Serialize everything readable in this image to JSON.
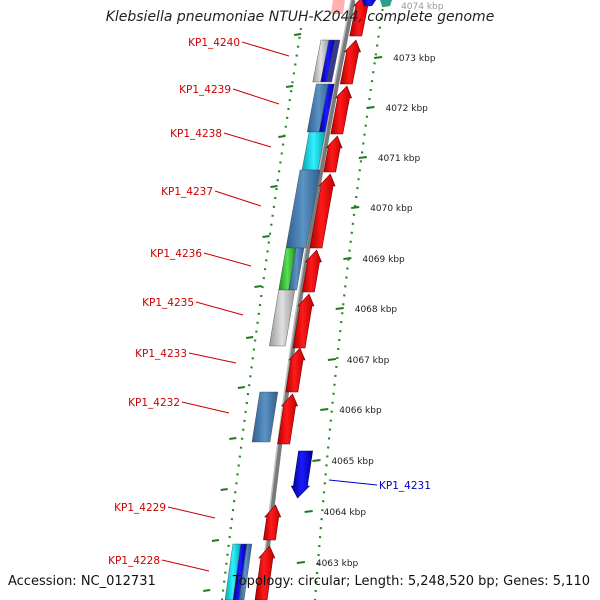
{
  "title": "Klebsiella pneumoniae NTUH-K2044, complete genome",
  "footer": {
    "accession": "Accession: NC_012731",
    "topology": "Topology: circular; Length: 5,248,520 bp; Genes: 5,110"
  },
  "colors": {
    "forward_gene": "#ff0000",
    "reverse_gene_blue": "#0000ee",
    "gene_label": "#cc0000",
    "reverse_label": "#0000cc",
    "backbone": "#808080",
    "scale_ticks": "#228b22"
  },
  "scale_ticks": [
    {
      "label": "4074 kbp"
    },
    {
      "label": "4073 kbp"
    },
    {
      "label": "4072 kbp"
    },
    {
      "label": "4071 kbp"
    },
    {
      "label": "4070 kbp"
    },
    {
      "label": "4069 kbp"
    },
    {
      "label": "4068 kbp"
    },
    {
      "label": "4067 kbp"
    },
    {
      "label": "4066 kbp"
    },
    {
      "label": "4065 kbp"
    },
    {
      "label": "4064 kbp"
    },
    {
      "label": "4063 kbp"
    }
  ],
  "gene_labels": [
    {
      "label": "KP1_4240"
    },
    {
      "label": "KP1_4239"
    },
    {
      "label": "KP1_4238"
    },
    {
      "label": "KP1_4237"
    },
    {
      "label": "KP1_4236"
    },
    {
      "label": "KP1_4235"
    },
    {
      "label": "KP1_4233"
    },
    {
      "label": "KP1_4232"
    },
    {
      "label": "KP1_4229"
    },
    {
      "label": "KP1_4228"
    }
  ],
  "reverse_labels": [
    {
      "label": "KP1_4231"
    }
  ]
}
